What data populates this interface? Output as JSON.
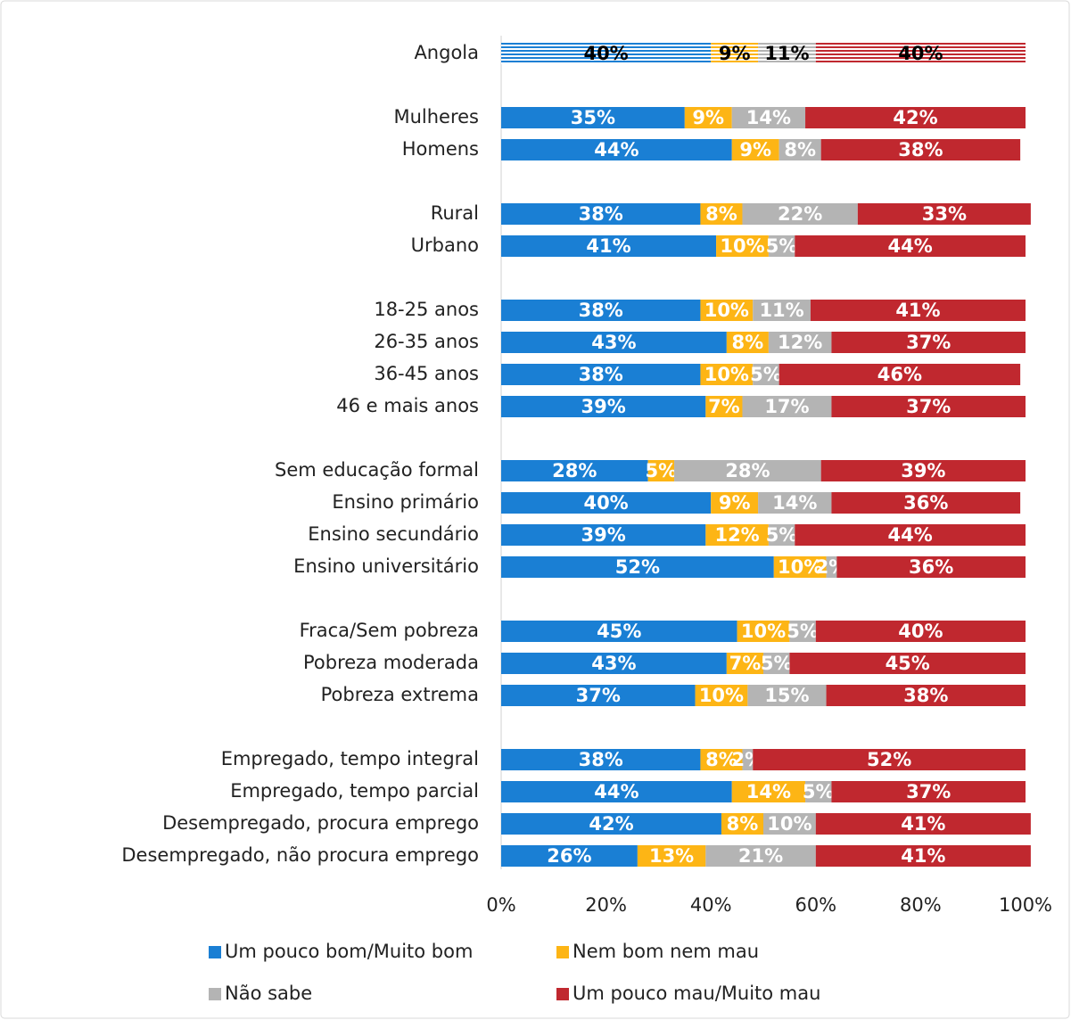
{
  "chart_data": {
    "type": "stacked_barh",
    "categories": [
      "Angola",
      null,
      "Mulheres",
      "Homens",
      null,
      "Rural",
      "Urbano",
      null,
      "18-25 anos",
      "26-35 anos",
      "36-45 anos",
      "46 e mais anos",
      null,
      "Sem educação formal",
      "Ensino primário",
      "Ensino secundário",
      "Ensino universitário",
      null,
      "Fraca/Sem pobreza",
      "Pobreza moderada",
      "Pobreza extrema",
      null,
      "Empregado, tempo integral",
      "Empregado, tempo parcial",
      "Desempregado, procura emprego",
      "Desempregado, não procura emprego"
    ],
    "series": [
      {
        "name": "Um pouco bom/Muito bom",
        "color": "#1a7fd4",
        "values": [
          40,
          null,
          35,
          44,
          null,
          38,
          41,
          null,
          38,
          43,
          38,
          39,
          null,
          28,
          40,
          39,
          52,
          null,
          45,
          43,
          37,
          null,
          38,
          44,
          42,
          26
        ],
        "value_labels": [
          "40%",
          null,
          "35%",
          "44%",
          null,
          "38%",
          "41%",
          null,
          "38%",
          "43%",
          "38%",
          "39%",
          null,
          "28%",
          "40%",
          "39%",
          "52%",
          null,
          "45%",
          "43%",
          "37%",
          null,
          "38%",
          "44%",
          "42%",
          "26%"
        ]
      },
      {
        "name": "Nem bom nem mau",
        "color": "#fdb515",
        "values": [
          9,
          null,
          9,
          9,
          null,
          8,
          10,
          null,
          10,
          8,
          10,
          7,
          null,
          5,
          9,
          12,
          10,
          null,
          10,
          7,
          10,
          null,
          8,
          14,
          8,
          13
        ],
        "value_labels": [
          "9%",
          null,
          "9%",
          "9%",
          null,
          "8%",
          "10%",
          null,
          "10%",
          "8%",
          "10%",
          "7%",
          null,
          "5%",
          "9%",
          "12%",
          "10%",
          null,
          "10%",
          "7%",
          "10%",
          null,
          "8%",
          "14%",
          "8%",
          "13%"
        ]
      },
      {
        "name": "Não sabe",
        "color": "#b4b4b4",
        "values": [
          11,
          null,
          14,
          8,
          null,
          22,
          5,
          null,
          11,
          12,
          5,
          17,
          null,
          28,
          14,
          5,
          2,
          null,
          5,
          5,
          15,
          null,
          2,
          5,
          10,
          21
        ],
        "value_labels": [
          "11%",
          null,
          "14%",
          "8%",
          null,
          "22%",
          "5%",
          null,
          "11%",
          "12%",
          "5%",
          "17%",
          null,
          "28%",
          "14%",
          "5%",
          "2%",
          null,
          "5%",
          "5%",
          "15%",
          null,
          "2%",
          "5%",
          "10%",
          "21%"
        ]
      },
      {
        "name": "Um pouco mau/Muito mau",
        "color": "#c0282f",
        "values": [
          40,
          null,
          42,
          38,
          null,
          33,
          44,
          null,
          41,
          37,
          46,
          37,
          null,
          39,
          36,
          44,
          36,
          null,
          40,
          45,
          38,
          null,
          52,
          37,
          41,
          41
        ],
        "value_labels": [
          "40%",
          null,
          "42%",
          "38%",
          null,
          "33%",
          "44%",
          null,
          "41%",
          "37%",
          "46%",
          "37%",
          null,
          "39%",
          "36%",
          "44%",
          "36%",
          null,
          "40%",
          "45%",
          "38%",
          null,
          "52%",
          "37%",
          "41%",
          "41%"
        ]
      }
    ],
    "xlim": [
      0,
      100
    ],
    "xticks": [
      {
        "value": 0,
        "label": "0%"
      },
      {
        "value": 20,
        "label": "20%"
      },
      {
        "value": 40,
        "label": "40%"
      },
      {
        "value": 60,
        "label": "60%"
      },
      {
        "value": 80,
        "label": "80%"
      },
      {
        "value": 100,
        "label": "100%"
      }
    ],
    "legend": "bottom"
  }
}
